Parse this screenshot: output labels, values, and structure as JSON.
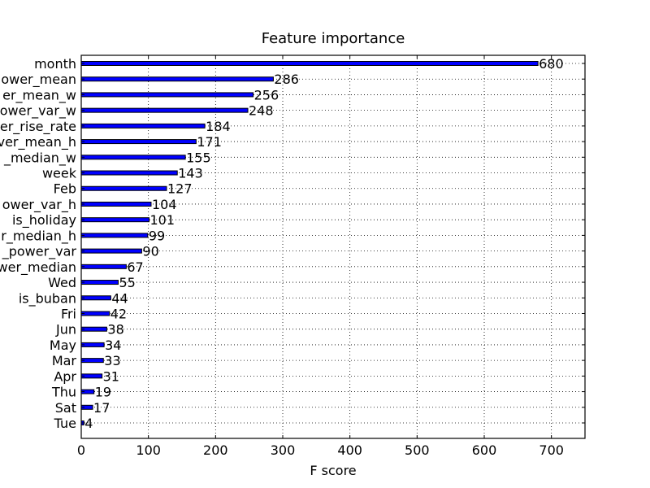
{
  "chart_data": {
    "type": "bar",
    "orientation": "horizontal",
    "title": "Feature importance",
    "xlabel": "F score",
    "ylabel": "",
    "xlim": [
      0,
      750
    ],
    "xticks": [
      0,
      100,
      200,
      300,
      400,
      500,
      600,
      700
    ],
    "grid": true,
    "bar_color": "#0000ff",
    "bar_edge_color": "#000000",
    "categories": [
      "month",
      "power_mean",
      "power_mean_w",
      "power_var_w",
      "power_rise_rate",
      "power_mean_h",
      "power_median_w",
      "week",
      "Feb",
      "power_var_h",
      "is_holiday",
      "power_median_h",
      "power_power_var",
      "power_median",
      "Wed",
      "is_buban",
      "Fri",
      "Jun",
      "May",
      "Mar",
      "Apr",
      "Thu",
      "Sat",
      "Tue"
    ],
    "category_labels_visible": [
      "month",
      "ower_mean",
      "er_mean_w",
      "ower_var_w",
      "er_rise_rate",
      "ver_mean_h",
      "_median_w",
      "week",
      "Feb",
      "ower_var_h",
      "is_holiday",
      "r_median_h",
      "_power_var",
      "wer_median",
      "Wed",
      "is_buban",
      "Fri",
      "Jun",
      "May",
      "Mar",
      "Apr",
      "Thu",
      "Sat",
      "Tue"
    ],
    "values": [
      680,
      286,
      256,
      248,
      184,
      171,
      155,
      143,
      127,
      104,
      101,
      99,
      90,
      67,
      55,
      44,
      42,
      38,
      34,
      33,
      31,
      19,
      17,
      4
    ]
  }
}
